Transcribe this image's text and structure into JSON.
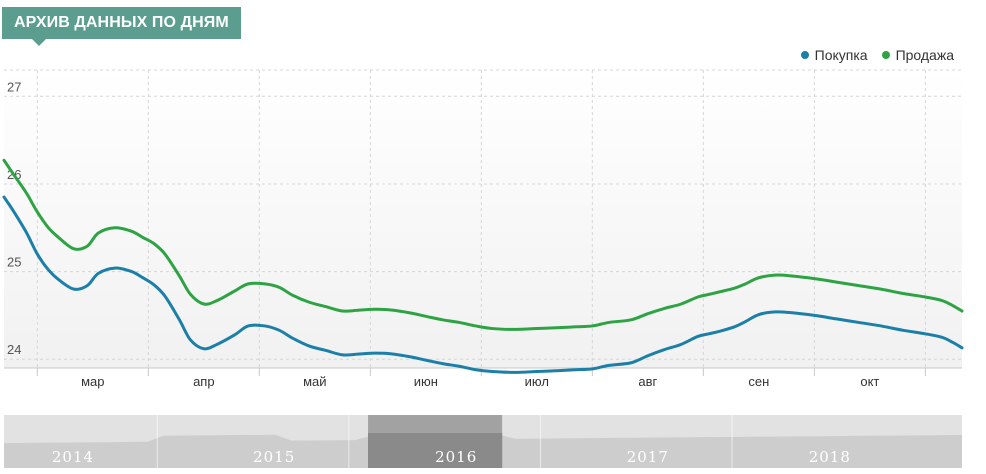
{
  "header": {
    "title": "АРХИВ ДАННЫХ ПО ДНЯМ"
  },
  "colors": {
    "title_bg": "#5b9e8f",
    "buy": "#1b7fa8",
    "sell": "#2ea344"
  },
  "chart_data": {
    "type": "line",
    "title": "",
    "xlabel": "",
    "ylabel": "",
    "ylim": [
      23.9,
      27.3
    ],
    "grid": true,
    "legend_position": "top-right",
    "y_ticks": [
      24,
      25,
      26,
      27
    ],
    "x_ticks": [
      {
        "label": "мар",
        "x": 2.5
      },
      {
        "label": "апр",
        "x": 3.5
      },
      {
        "label": "май",
        "x": 4.5
      },
      {
        "label": "июн",
        "x": 5.5
      },
      {
        "label": "июл",
        "x": 6.5
      },
      {
        "label": "авг",
        "x": 7.5
      },
      {
        "label": "сен",
        "x": 8.5
      },
      {
        "label": "окт",
        "x": 9.5
      }
    ],
    "x_boundaries": [
      2,
      3,
      4,
      5,
      6,
      7,
      8,
      9,
      10
    ],
    "xlim": [
      1.7,
      10.33
    ],
    "series": [
      {
        "name": "Покупка",
        "color": "#1b7fa8",
        "x": [
          1.7,
          1.78,
          1.9,
          2.0,
          2.1,
          2.2,
          2.33,
          2.45,
          2.55,
          2.7,
          2.85,
          2.95,
          3.05,
          3.15,
          3.28,
          3.38,
          3.5,
          3.62,
          3.78,
          3.9,
          4.05,
          4.18,
          4.3,
          4.45,
          4.6,
          4.75,
          4.9,
          5.05,
          5.2,
          5.35,
          5.5,
          5.65,
          5.8,
          5.95,
          6.1,
          6.3,
          6.5,
          6.7,
          6.85,
          7.0,
          7.15,
          7.35,
          7.5,
          7.65,
          7.8,
          7.95,
          8.05,
          8.15,
          8.28,
          8.38,
          8.5,
          8.65,
          8.8,
          9.0,
          9.2,
          9.4,
          9.6,
          9.8,
          10.0,
          10.15,
          10.25,
          10.33
        ],
        "values": [
          25.85,
          25.7,
          25.45,
          25.2,
          25.02,
          24.9,
          24.8,
          24.84,
          24.98,
          25.04,
          25.0,
          24.93,
          24.85,
          24.72,
          24.45,
          24.22,
          24.12,
          24.17,
          24.28,
          24.38,
          24.38,
          24.33,
          24.24,
          24.15,
          24.1,
          24.05,
          24.06,
          24.07,
          24.06,
          24.03,
          23.99,
          23.95,
          23.92,
          23.88,
          23.86,
          23.85,
          23.86,
          23.87,
          23.88,
          23.89,
          23.93,
          23.96,
          24.04,
          24.11,
          24.17,
          24.26,
          24.29,
          24.32,
          24.37,
          24.43,
          24.51,
          24.54,
          24.53,
          24.5,
          24.46,
          24.42,
          24.38,
          24.33,
          24.29,
          24.25,
          24.19,
          24.13
        ]
      },
      {
        "name": "Продажа",
        "color": "#2ea344",
        "x": [
          1.7,
          1.78,
          1.9,
          2.0,
          2.1,
          2.2,
          2.33,
          2.45,
          2.55,
          2.7,
          2.85,
          2.95,
          3.05,
          3.15,
          3.28,
          3.38,
          3.5,
          3.62,
          3.78,
          3.9,
          4.05,
          4.18,
          4.3,
          4.45,
          4.6,
          4.75,
          4.9,
          5.05,
          5.2,
          5.35,
          5.5,
          5.65,
          5.8,
          5.95,
          6.1,
          6.3,
          6.5,
          6.7,
          6.85,
          7.0,
          7.15,
          7.35,
          7.5,
          7.65,
          7.8,
          7.95,
          8.05,
          8.15,
          8.28,
          8.38,
          8.5,
          8.65,
          8.8,
          9.0,
          9.2,
          9.4,
          9.6,
          9.8,
          10.0,
          10.15,
          10.25,
          10.33
        ],
        "values": [
          26.27,
          26.12,
          25.9,
          25.68,
          25.5,
          25.38,
          25.26,
          25.29,
          25.44,
          25.5,
          25.46,
          25.39,
          25.32,
          25.2,
          24.95,
          24.74,
          24.63,
          24.67,
          24.78,
          24.86,
          24.86,
          24.82,
          24.73,
          24.65,
          24.6,
          24.55,
          24.56,
          24.57,
          24.56,
          24.53,
          24.49,
          24.45,
          24.42,
          24.38,
          24.35,
          24.34,
          24.35,
          24.36,
          24.37,
          24.38,
          24.42,
          24.45,
          24.52,
          24.58,
          24.63,
          24.71,
          24.74,
          24.77,
          24.81,
          24.86,
          24.93,
          24.96,
          24.95,
          24.92,
          24.88,
          24.84,
          24.8,
          24.75,
          24.71,
          24.67,
          24.61,
          24.55
        ]
      }
    ],
    "navigator": {
      "years": [
        {
          "label": "2014",
          "x": 0.05
        },
        {
          "label": "2015",
          "x": 0.26
        },
        {
          "label": "2016",
          "x": 0.45
        },
        {
          "label": "2017",
          "x": 0.65
        },
        {
          "label": "2018",
          "x": 0.84
        }
      ],
      "selected_year": "2016",
      "selected_range": [
        0.38,
        0.52
      ]
    }
  },
  "legend": {
    "items": [
      {
        "label": "Покупка",
        "color": "#1b7fa8"
      },
      {
        "label": "Продажа",
        "color": "#2ea344"
      }
    ]
  }
}
